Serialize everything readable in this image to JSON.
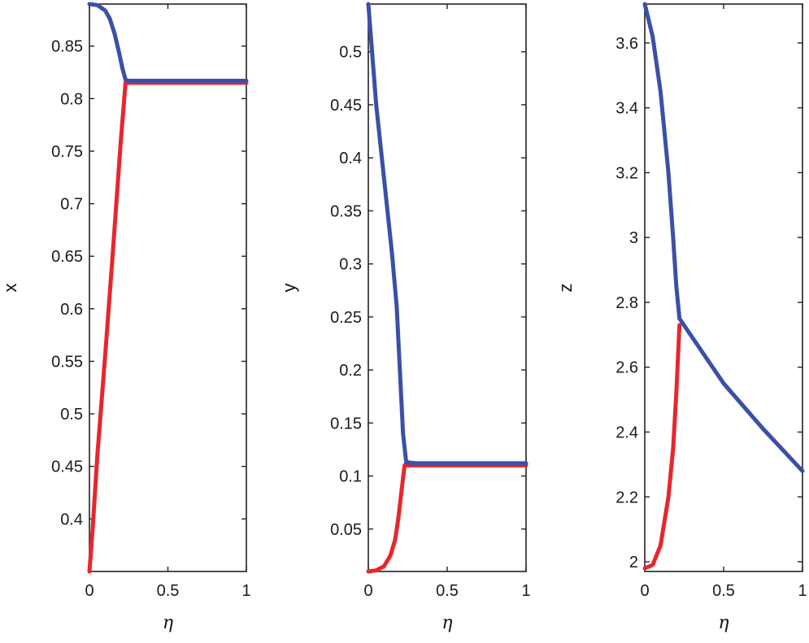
{
  "chart_data": [
    {
      "type": "line",
      "ylabel": "x",
      "xlabel": "η",
      "xlim": [
        0,
        1
      ],
      "ylim": [
        0.35,
        0.89
      ],
      "xticks": [
        0,
        0.5,
        1
      ],
      "xtick_labels": [
        "0",
        "0.5",
        "1"
      ],
      "yticks": [
        0.4,
        0.45,
        0.5,
        0.55,
        0.6,
        0.65,
        0.7,
        0.75,
        0.8,
        0.85
      ],
      "ytick_labels": [
        "0.4",
        "0.45",
        "0.5",
        "0.55",
        "0.6",
        "0.65",
        "0.7",
        "0.75",
        "0.8",
        "0.85"
      ],
      "series": [
        {
          "name": "blue",
          "color": "#3a50a8",
          "x": [
            0,
            0.05,
            0.1,
            0.13,
            0.16,
            0.19,
            0.21,
            0.23,
            0.25,
            0.5,
            0.75,
            1
          ],
          "y": [
            0.89,
            0.889,
            0.884,
            0.876,
            0.862,
            0.843,
            0.829,
            0.818,
            0.817,
            0.817,
            0.817,
            0.817
          ]
        },
        {
          "name": "red",
          "color": "#e8262d",
          "x": [
            0,
            0.02,
            0.05,
            0.1,
            0.15,
            0.2,
            0.23,
            0.3,
            0.5,
            0.75,
            1
          ],
          "y": [
            0.35,
            0.39,
            0.46,
            0.555,
            0.655,
            0.76,
            0.815,
            0.815,
            0.815,
            0.815,
            0.815
          ]
        }
      ]
    },
    {
      "type": "line",
      "ylabel": "y",
      "xlabel": "η",
      "xlim": [
        0,
        1
      ],
      "ylim": [
        0.01,
        0.545
      ],
      "xticks": [
        0,
        0.5,
        1
      ],
      "xtick_labels": [
        "0",
        "0.5",
        "1"
      ],
      "yticks": [
        0.05,
        0.1,
        0.15,
        0.2,
        0.25,
        0.3,
        0.35,
        0.4,
        0.45,
        0.5
      ],
      "ytick_labels": [
        "0.05",
        "0.1",
        "0.15",
        "0.2",
        "0.25",
        "0.3",
        "0.35",
        "0.4",
        "0.45",
        "0.5"
      ],
      "series": [
        {
          "name": "blue",
          "color": "#3a50a8",
          "x": [
            0,
            0.05,
            0.1,
            0.15,
            0.18,
            0.2,
            0.22,
            0.24,
            0.3,
            0.5,
            0.75,
            1
          ],
          "y": [
            0.545,
            0.45,
            0.38,
            0.31,
            0.26,
            0.2,
            0.14,
            0.113,
            0.112,
            0.112,
            0.112,
            0.112
          ]
        },
        {
          "name": "red",
          "color": "#e8262d",
          "x": [
            0,
            0.05,
            0.1,
            0.14,
            0.17,
            0.19,
            0.21,
            0.23,
            0.3,
            0.5,
            0.75,
            1
          ],
          "y": [
            0.01,
            0.011,
            0.015,
            0.025,
            0.04,
            0.06,
            0.085,
            0.11,
            0.11,
            0.11,
            0.11,
            0.11
          ]
        }
      ]
    },
    {
      "type": "line",
      "ylabel": "z",
      "xlabel": "η",
      "xlim": [
        0,
        1
      ],
      "ylim": [
        1.97,
        3.72
      ],
      "xticks": [
        0,
        0.5,
        1
      ],
      "xtick_labels": [
        "0",
        "0.5",
        "1"
      ],
      "yticks": [
        2,
        2.2,
        2.4,
        2.6,
        2.8,
        3,
        3.2,
        3.4,
        3.6
      ],
      "ytick_labels": [
        "2",
        "2.2",
        "2.4",
        "2.6",
        "2.8",
        "3",
        "3.2",
        "3.4",
        "3.6"
      ],
      "series": [
        {
          "name": "blue",
          "color": "#3a50a8",
          "x": [
            0,
            0.05,
            0.1,
            0.15,
            0.18,
            0.2,
            0.22,
            0.5,
            0.75,
            1
          ],
          "y": [
            3.72,
            3.62,
            3.45,
            3.2,
            3.0,
            2.85,
            2.75,
            2.55,
            2.41,
            2.28
          ]
        },
        {
          "name": "red",
          "color": "#e8262d",
          "x": [
            0,
            0.05,
            0.1,
            0.15,
            0.18,
            0.2,
            0.22
          ],
          "y": [
            1.98,
            1.99,
            2.05,
            2.2,
            2.35,
            2.52,
            2.73
          ]
        }
      ]
    }
  ]
}
